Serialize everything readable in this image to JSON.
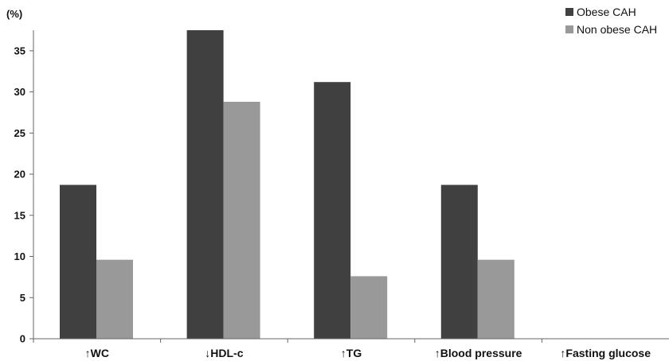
{
  "chart_data": {
    "type": "bar",
    "ylabel": "(%)",
    "ylim": [
      0,
      37.5
    ],
    "yticks": [
      "0",
      "5",
      "10",
      "15",
      "20",
      "25",
      "30",
      "35"
    ],
    "categories": [
      "↑WC",
      "↓HDL-c",
      "↑TG",
      "↑Blood pressure",
      "↑Fasting glucose"
    ],
    "series": [
      {
        "name": "Obese CAH",
        "color": "#404040",
        "values": [
          18.7,
          37.5,
          31.2,
          18.7,
          0
        ]
      },
      {
        "name": "Non obese CAH",
        "color": "#999999",
        "values": [
          9.6,
          28.8,
          7.6,
          9.6,
          0
        ]
      }
    ],
    "legend_position": "top-right",
    "grid": false
  }
}
